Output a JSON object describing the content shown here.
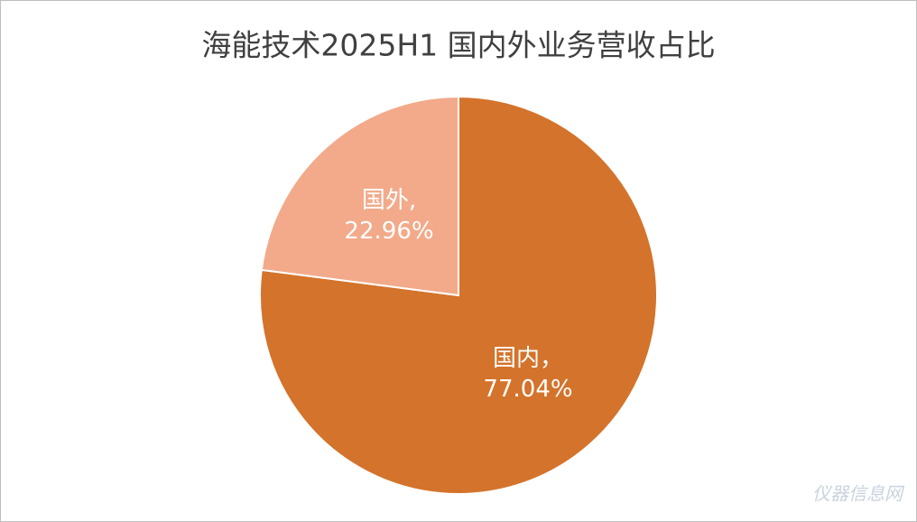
{
  "chart_data": {
    "type": "pie",
    "title": "海能技术2025H1 国内外业务营收占比",
    "categories": [
      "国内，",
      "国外,"
    ],
    "values": [
      77.04,
      22.96
    ],
    "value_labels": [
      "77.04%",
      "22.96%"
    ],
    "colors": [
      "#d4732b",
      "#f2aa8a"
    ],
    "watermark": "仪器信息网"
  }
}
